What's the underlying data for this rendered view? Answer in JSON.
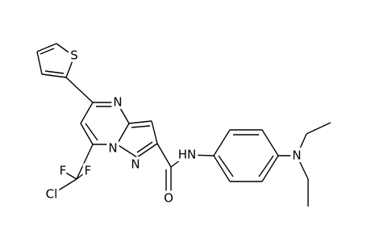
{
  "atom_labels": [
    "S",
    "N",
    "N",
    "N",
    "F",
    "F",
    "Cl",
    "O",
    "HN",
    "N"
  ]
}
